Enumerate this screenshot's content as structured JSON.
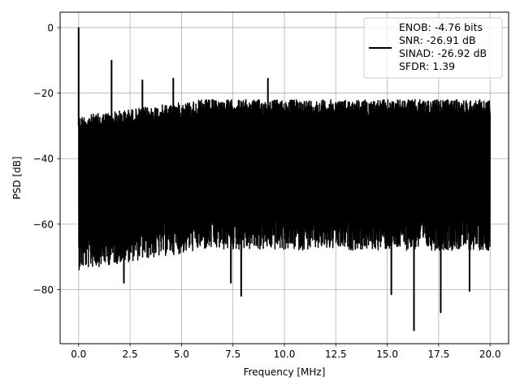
{
  "chart_data": {
    "type": "line",
    "title": "",
    "xlabel": "Frequency [MHz]",
    "ylabel": "PSD [dB]",
    "xlim": [
      -0.9,
      20.9
    ],
    "ylim": [
      -96.5,
      4.7
    ],
    "xticks": [
      0.0,
      2.5,
      5.0,
      7.5,
      10.0,
      12.5,
      15.0,
      17.5,
      20.0
    ],
    "xtick_labels": [
      "0.0",
      "2.5",
      "5.0",
      "7.5",
      "10.0",
      "12.5",
      "15.0",
      "17.5",
      "20.0"
    ],
    "yticks": [
      0,
      -20,
      -40,
      -60,
      -80
    ],
    "ytick_labels": [
      "0",
      "−20",
      "−40",
      "−60",
      "−80"
    ],
    "grid": true,
    "legend_position": "top-right",
    "line_color": "#000000",
    "series": [
      {
        "description": "dense noise band roughly between -26 dB and -65 dB across 0–20 MHz with spurs",
        "noise_band": {
          "x_start": 0.0,
          "x_end": 20.0,
          "upper_db_start": -27,
          "upper_db_mid": -22,
          "lower_db_start": -64,
          "lower_db_mid": -58
        },
        "peaks": [
          {
            "x": 0.0,
            "y": 0.0
          },
          {
            "x": 1.6,
            "y": -10.0
          },
          {
            "x": 3.1,
            "y": -16.0
          },
          {
            "x": 4.6,
            "y": -15.5
          },
          {
            "x": 9.2,
            "y": -15.5
          }
        ],
        "dips": [
          {
            "x": 7.9,
            "y": -82.0
          },
          {
            "x": 15.2,
            "y": -81.5
          },
          {
            "x": 16.3,
            "y": -92.5
          },
          {
            "x": 17.6,
            "y": -87.0
          },
          {
            "x": 19.0,
            "y": -80.5
          },
          {
            "x": 2.2,
            "y": -78.0
          },
          {
            "x": 7.4,
            "y": -78.0
          }
        ]
      }
    ],
    "legend": {
      "lines": [
        "ENOB: -4.76 bits",
        "SNR: -26.91 dB",
        "SINAD: -26.92 dB",
        "SFDR: 1.39"
      ]
    }
  }
}
